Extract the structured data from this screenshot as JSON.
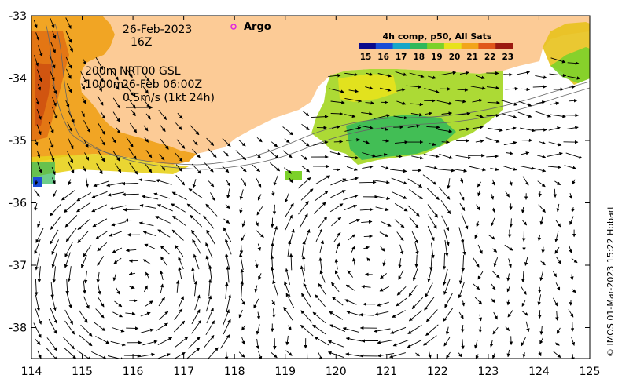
{
  "date_line": "26-Feb-2023",
  "time_line": "16Z",
  "legend_isobath_200": "200m",
  "legend_isobath_1000": "1000m",
  "current_source": "NRT00 GSL",
  "current_time": "26-Feb 06:00Z",
  "scale_label": "0.5m/s (1kt 24h)",
  "argo_label": "Argo",
  "colorbar_title": "4h comp, p50, All Sats",
  "colorbar_ticks": [
    "15",
    "16",
    "17",
    "18",
    "19",
    "20",
    "21",
    "22",
    "23"
  ],
  "colorbar_colors": [
    "#0a0a8c",
    "#1a4cd6",
    "#18a6c8",
    "#2fb85a",
    "#7cd12a",
    "#e8e21c",
    "#f2a51a",
    "#e0561a",
    "#9b1a10"
  ],
  "credit": "© IMOS 01-Mar-2023 15:22 Hobart",
  "x_ticks": [
    "114",
    "115",
    "116",
    "117",
    "118",
    "119",
    "120",
    "121",
    "122",
    "123",
    "124",
    "125"
  ],
  "y_ticks": [
    "-33",
    "-34",
    "-35",
    "-36",
    "-37",
    "-38"
  ],
  "colors": {
    "land": "#fccb96",
    "argo": "#e020e0"
  }
}
